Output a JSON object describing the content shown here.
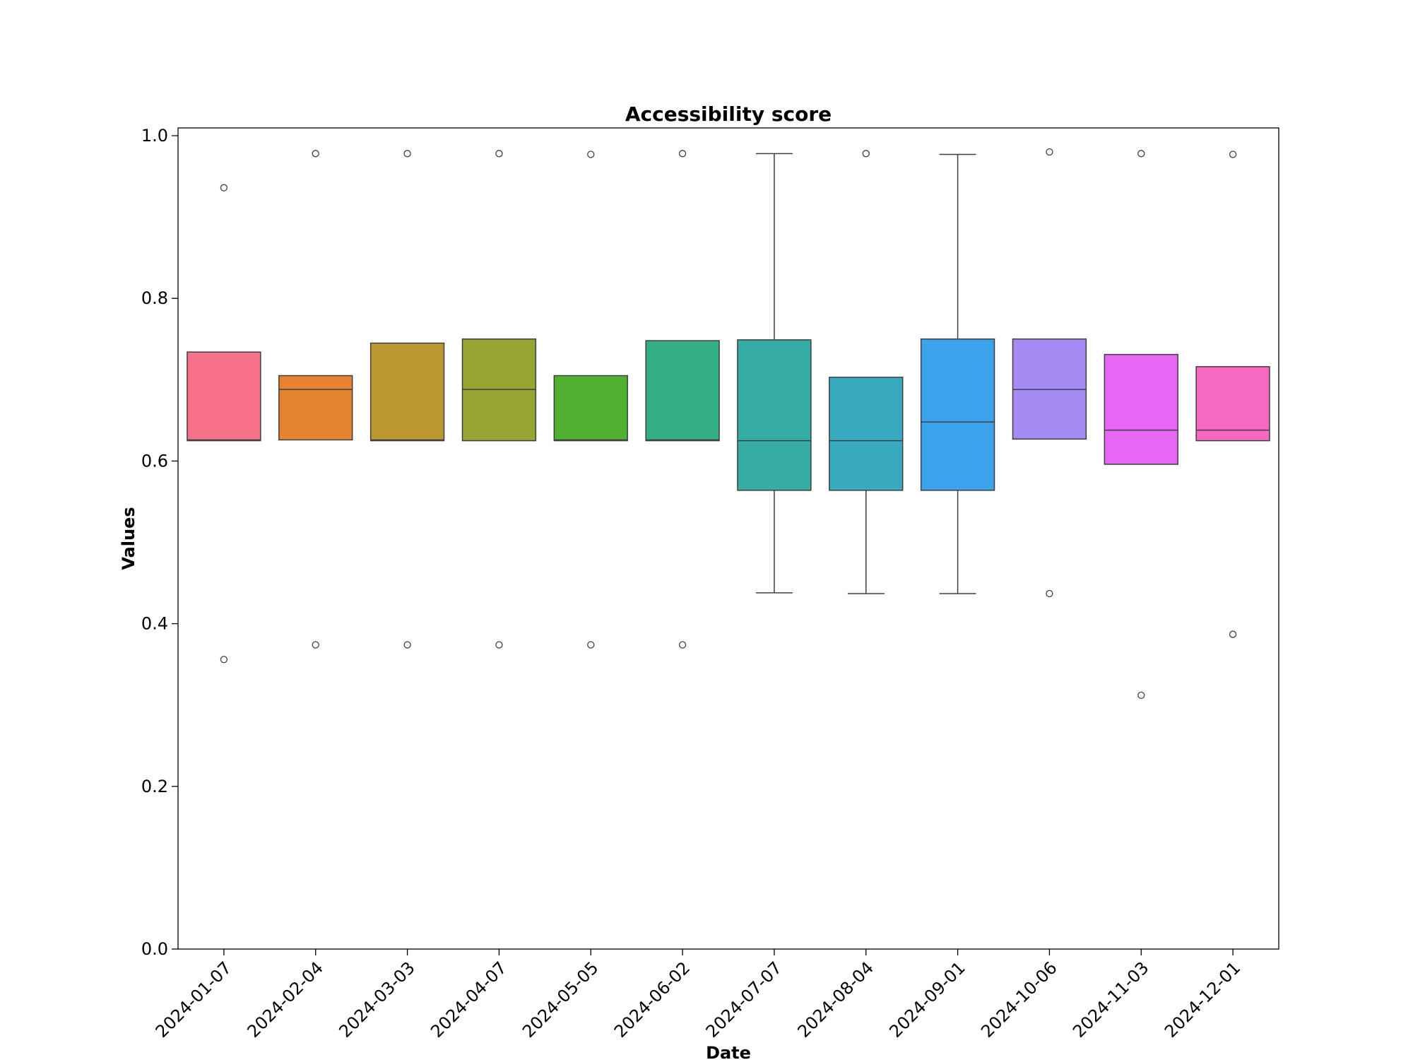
{
  "chart_data": {
    "type": "box",
    "title": "Accessibility score",
    "xlabel": "Date",
    "ylabel": "Values",
    "ylim": [
      0,
      1.01
    ],
    "yticks": [
      0.0,
      0.2,
      0.4,
      0.6,
      0.8,
      1.0
    ],
    "ytick_labels": [
      "0.0",
      "0.2",
      "0.4",
      "0.6",
      "0.8",
      "1.0"
    ],
    "categories": [
      "2024-01-07",
      "2024-02-04",
      "2024-03-03",
      "2024-04-07",
      "2024-05-05",
      "2024-06-02",
      "2024-07-07",
      "2024-08-04",
      "2024-09-01",
      "2024-10-06",
      "2024-11-03",
      "2024-12-01"
    ],
    "boxes": [
      {
        "q1": 0.625,
        "median": 0.626,
        "q3": 0.734,
        "whislo": 0.625,
        "whishi": 0.734,
        "fliers": [
          0.936,
          0.356
        ],
        "color": "#f77189"
      },
      {
        "q1": 0.626,
        "median": 0.688,
        "q3": 0.705,
        "whislo": 0.626,
        "whishi": 0.705,
        "fliers": [
          0.978,
          0.374
        ],
        "color": "#e68332"
      },
      {
        "q1": 0.625,
        "median": 0.626,
        "q3": 0.745,
        "whislo": 0.625,
        "whishi": 0.745,
        "fliers": [
          0.978,
          0.374
        ],
        "color": "#bb9832"
      },
      {
        "q1": 0.625,
        "median": 0.688,
        "q3": 0.75,
        "whislo": 0.625,
        "whishi": 0.75,
        "fliers": [
          0.978,
          0.374
        ],
        "color": "#97a431"
      },
      {
        "q1": 0.625,
        "median": 0.626,
        "q3": 0.705,
        "whislo": 0.625,
        "whishi": 0.705,
        "fliers": [
          0.977,
          0.374
        ],
        "color": "#50b131"
      },
      {
        "q1": 0.625,
        "median": 0.626,
        "q3": 0.748,
        "whislo": 0.625,
        "whishi": 0.748,
        "fliers": [
          0.978,
          0.374
        ],
        "color": "#34af84"
      },
      {
        "q1": 0.564,
        "median": 0.625,
        "q3": 0.749,
        "whislo": 0.438,
        "whishi": 0.978,
        "fliers": [],
        "color": "#36ada4"
      },
      {
        "q1": 0.564,
        "median": 0.625,
        "q3": 0.703,
        "whislo": 0.437,
        "whishi": 0.703,
        "fliers": [
          0.978
        ],
        "color": "#38aabf"
      },
      {
        "q1": 0.564,
        "median": 0.648,
        "q3": 0.75,
        "whislo": 0.437,
        "whishi": 0.977,
        "fliers": [],
        "color": "#3ba3ec"
      },
      {
        "q1": 0.627,
        "median": 0.688,
        "q3": 0.75,
        "whislo": 0.627,
        "whishi": 0.75,
        "fliers": [
          0.98,
          0.437
        ],
        "color": "#a48cf4"
      },
      {
        "q1": 0.596,
        "median": 0.638,
        "q3": 0.731,
        "whislo": 0.596,
        "whishi": 0.731,
        "fliers": [
          0.978,
          0.312
        ],
        "color": "#e866f4"
      },
      {
        "q1": 0.625,
        "median": 0.638,
        "q3": 0.716,
        "whislo": 0.625,
        "whishi": 0.716,
        "fliers": [
          0.977,
          0.387
        ],
        "color": "#f668c2"
      }
    ],
    "grid": false,
    "legend": "none"
  }
}
